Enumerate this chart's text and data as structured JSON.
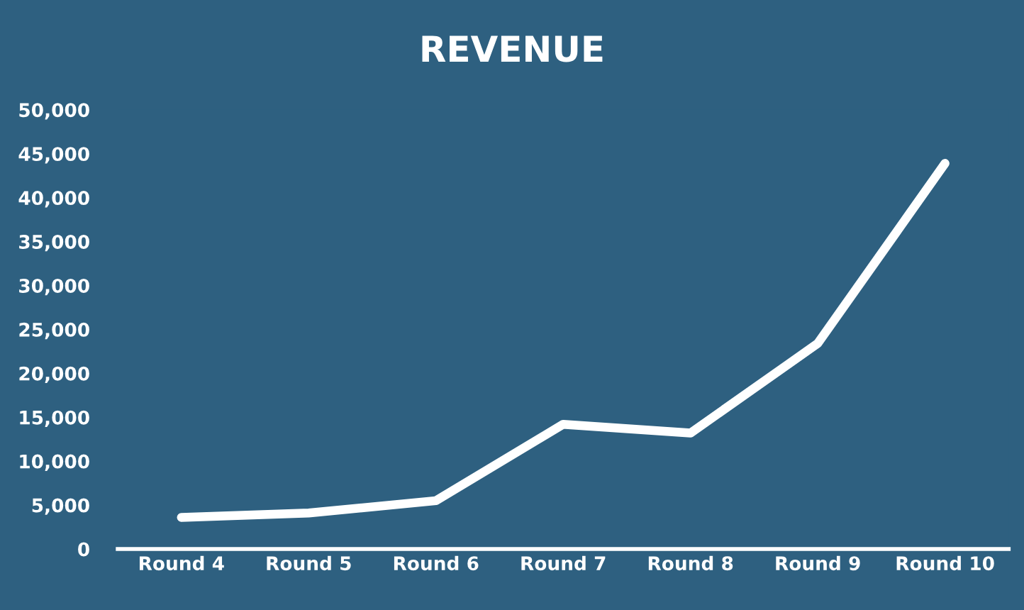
{
  "chart_data": {
    "type": "line",
    "title": "REVENUE",
    "categories": [
      "Round 4",
      "Round 5",
      "Round 6",
      "Round 7",
      "Round 8",
      "Round 9",
      "Round 10"
    ],
    "series": [
      {
        "color": "#ffffff",
        "values": [
          3600,
          4100,
          5500,
          14200,
          13200,
          23400,
          43900
        ]
      }
    ],
    "ylim": [
      0,
      50000
    ],
    "yticks": [
      {
        "value": 0,
        "label": "0"
      },
      {
        "value": 5000,
        "label": "5,000"
      },
      {
        "value": 10000,
        "label": "10,000"
      },
      {
        "value": 15000,
        "label": "15,000"
      },
      {
        "value": 20000,
        "label": "20,000"
      },
      {
        "value": 25000,
        "label": "25,000"
      },
      {
        "value": 30000,
        "label": "30,000"
      },
      {
        "value": 35000,
        "label": "35,000"
      },
      {
        "value": 40000,
        "label": "40,000"
      },
      {
        "value": 45000,
        "label": "45,000"
      },
      {
        "value": 50000,
        "label": "50,000"
      }
    ],
    "grid": false,
    "legend": false,
    "marker": "none",
    "line_style": "solid"
  }
}
